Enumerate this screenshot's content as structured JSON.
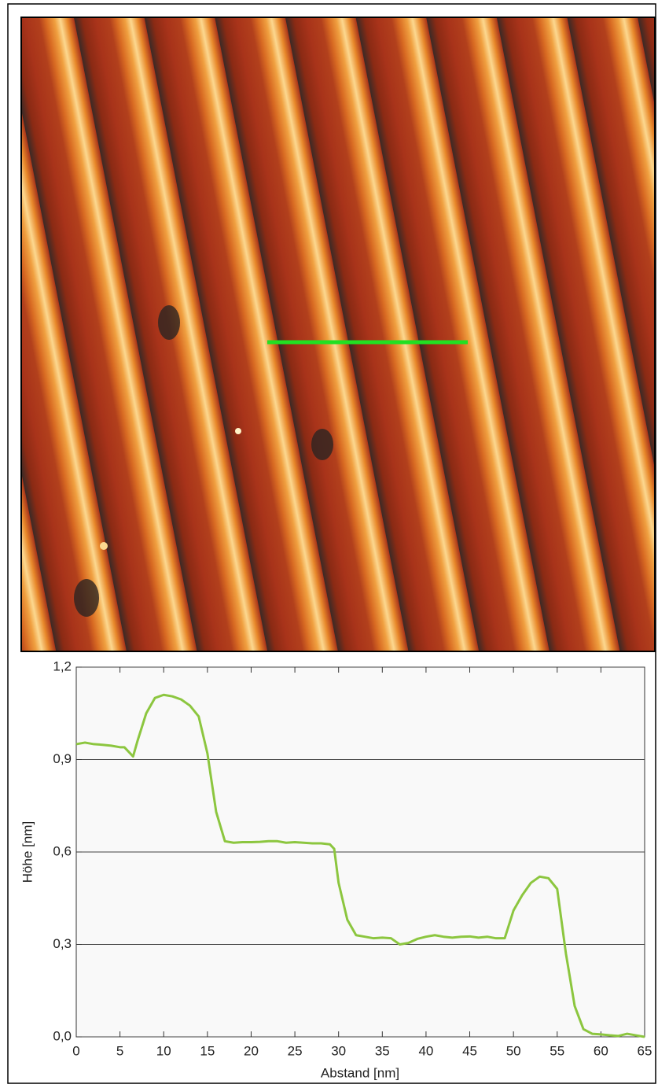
{
  "chart_data": {
    "type": "line",
    "xlabel": "Abstand [nm]",
    "ylabel": "Höhe [nm]",
    "x": [
      0,
      1,
      2,
      3,
      4,
      5,
      5.5,
      6.5,
      7,
      8,
      9,
      10,
      11,
      12,
      13,
      14,
      15,
      16,
      17,
      18,
      19,
      20,
      21,
      22,
      23,
      24,
      25,
      26,
      27,
      28,
      29,
      29.5,
      30,
      31,
      32,
      33,
      34,
      35,
      36,
      37,
      38,
      39,
      40,
      41,
      42,
      43,
      44,
      45,
      46,
      47,
      48,
      49,
      50,
      51,
      52,
      53,
      54,
      55,
      56,
      57,
      58,
      59,
      60,
      61,
      62,
      63,
      64,
      65
    ],
    "values": [
      0.95,
      0.955,
      0.95,
      0.948,
      0.945,
      0.94,
      0.94,
      0.91,
      0.96,
      1.05,
      1.1,
      1.11,
      1.105,
      1.095,
      1.075,
      1.04,
      0.92,
      0.73,
      0.635,
      0.63,
      0.632,
      0.632,
      0.633,
      0.635,
      0.635,
      0.63,
      0.632,
      0.63,
      0.628,
      0.628,
      0.625,
      0.61,
      0.5,
      0.38,
      0.33,
      0.325,
      0.32,
      0.322,
      0.32,
      0.3,
      0.305,
      0.318,
      0.325,
      0.33,
      0.325,
      0.322,
      0.325,
      0.326,
      0.322,
      0.325,
      0.32,
      0.32,
      0.41,
      0.46,
      0.5,
      0.52,
      0.515,
      0.48,
      0.27,
      0.1,
      0.025,
      0.01,
      0.008,
      0.005,
      0.003,
      0.01,
      0.005,
      0.0
    ],
    "color": "#8cc63f",
    "xlim": [
      0,
      65
    ],
    "xticks": [
      0,
      5,
      10,
      15,
      20,
      25,
      30,
      35,
      40,
      45,
      50,
      55,
      60,
      65
    ],
    "ylim": [
      0,
      1.2
    ],
    "yticks": [
      {
        "value": 0,
        "label": "0,0"
      },
      {
        "value": 0.3,
        "label": "0,3"
      },
      {
        "value": 0.6,
        "label": "0,6"
      },
      {
        "value": 0.9,
        "label": "0,9"
      },
      {
        "value": 1.2,
        "label": "1,2"
      }
    ],
    "grid": true
  }
}
